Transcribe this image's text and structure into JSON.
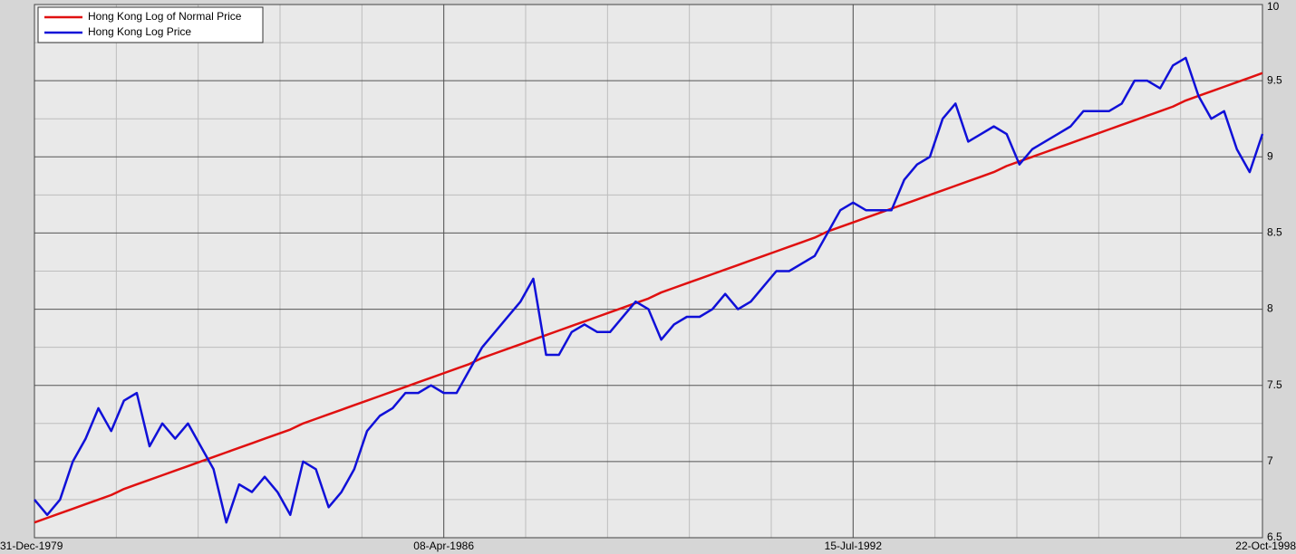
{
  "chart_data": {
    "type": "line",
    "categories": [
      "31-Dec-1979",
      null,
      null,
      null,
      null,
      null,
      null,
      null,
      null,
      null,
      null,
      null,
      null,
      null,
      null,
      null,
      null,
      null,
      null,
      null,
      null,
      null,
      null,
      null,
      null,
      null,
      null,
      null,
      null,
      null,
      null,
      null,
      "08-Apr-1986",
      null,
      null,
      null,
      null,
      null,
      null,
      null,
      null,
      null,
      null,
      null,
      null,
      null,
      null,
      null,
      null,
      null,
      null,
      null,
      null,
      null,
      null,
      null,
      null,
      null,
      null,
      null,
      null,
      null,
      null,
      null,
      "15-Jul-1992",
      null,
      null,
      null,
      null,
      null,
      null,
      null,
      null,
      null,
      null,
      null,
      null,
      null,
      null,
      null,
      null,
      null,
      null,
      null,
      null,
      null,
      null,
      null,
      null,
      null,
      null,
      null,
      null,
      null,
      null,
      null,
      "22-Oct-1998"
    ],
    "series": [
      {
        "name": "Hong Kong Log of Normal Price",
        "color": "#e01010",
        "values": [
          6.6,
          6.63,
          6.66,
          6.69,
          6.72,
          6.75,
          6.78,
          6.82,
          6.85,
          6.88,
          6.91,
          6.94,
          6.97,
          7.0,
          7.03,
          7.06,
          7.09,
          7.12,
          7.15,
          7.18,
          7.21,
          7.25,
          7.28,
          7.31,
          7.34,
          7.37,
          7.4,
          7.43,
          7.46,
          7.49,
          7.52,
          7.55,
          7.58,
          7.61,
          7.64,
          7.68,
          7.71,
          7.74,
          7.77,
          7.8,
          7.83,
          7.86,
          7.89,
          7.92,
          7.95,
          7.98,
          8.01,
          8.04,
          8.07,
          8.11,
          8.14,
          8.17,
          8.2,
          8.23,
          8.26,
          8.29,
          8.32,
          8.35,
          8.38,
          8.41,
          8.44,
          8.47,
          8.51,
          8.54,
          8.57,
          8.6,
          8.63,
          8.66,
          8.69,
          8.72,
          8.75,
          8.78,
          8.81,
          8.84,
          8.87,
          8.9,
          8.94,
          8.97,
          9.0,
          9.03,
          9.06,
          9.09,
          9.12,
          9.15,
          9.18,
          9.21,
          9.24,
          9.27,
          9.3,
          9.33,
          9.37,
          9.4,
          9.43,
          9.46,
          9.49,
          9.52,
          9.55
        ]
      },
      {
        "name": "Hong Kong Log Price",
        "color": "#1010d8",
        "values": [
          6.75,
          6.65,
          6.75,
          7.0,
          7.15,
          7.35,
          7.2,
          7.4,
          7.45,
          7.1,
          7.25,
          7.15,
          7.25,
          7.1,
          6.95,
          6.6,
          6.85,
          6.8,
          6.9,
          6.8,
          6.65,
          7.0,
          6.95,
          6.7,
          6.8,
          6.95,
          7.2,
          7.3,
          7.35,
          7.45,
          7.45,
          7.5,
          7.45,
          7.45,
          7.6,
          7.75,
          7.85,
          7.95,
          8.05,
          8.2,
          7.7,
          7.7,
          7.85,
          7.9,
          7.85,
          7.85,
          7.95,
          8.05,
          8.0,
          7.8,
          7.9,
          7.95,
          7.95,
          8.0,
          8.1,
          8.0,
          8.05,
          8.15,
          8.25,
          8.25,
          8.3,
          8.35,
          8.5,
          8.65,
          8.7,
          8.65,
          8.65,
          8.65,
          8.85,
          8.95,
          9.0,
          9.25,
          9.35,
          9.1,
          9.15,
          9.2,
          9.15,
          8.95,
          9.05,
          9.1,
          9.15,
          9.2,
          9.3,
          9.3,
          9.3,
          9.35,
          9.5,
          9.5,
          9.45,
          9.6,
          9.65,
          9.4,
          9.25,
          9.3,
          9.05,
          8.9,
          9.15
        ]
      }
    ],
    "ylim": [
      6.5,
      10
    ],
    "yticks": [
      6.5,
      7,
      7.5,
      8,
      8.5,
      9,
      9.5,
      10
    ],
    "grid": true,
    "legend": "upper left"
  }
}
